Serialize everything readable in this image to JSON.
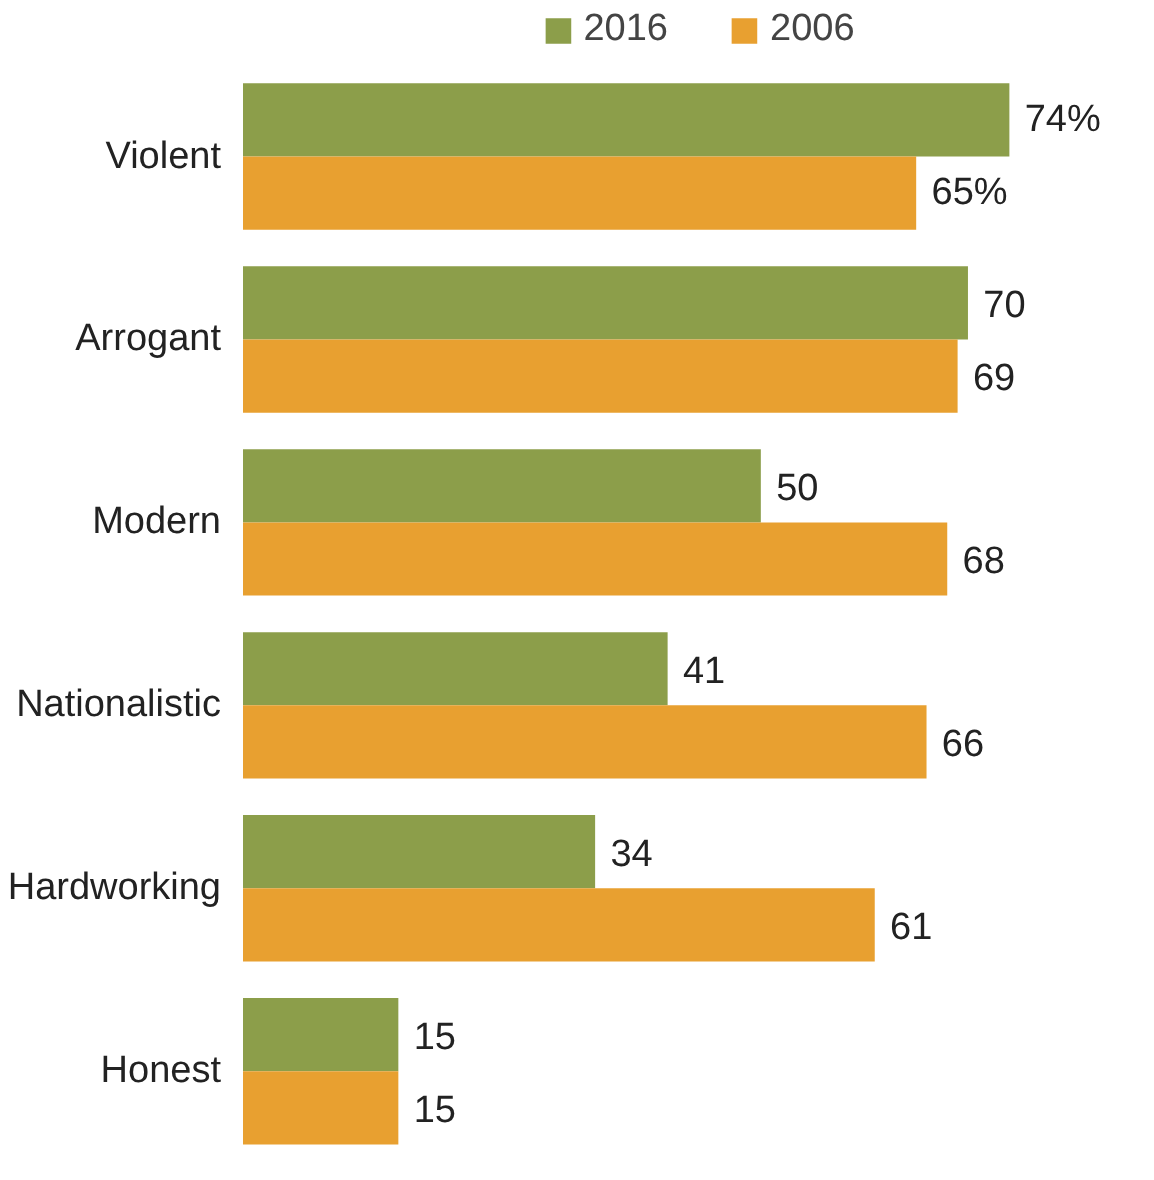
{
  "chart_data": {
    "type": "bar",
    "orientation": "horizontal",
    "categories": [
      "Violent",
      "Arrogant",
      "Modern",
      "Nationalistic",
      "Hardworking",
      "Honest"
    ],
    "series": [
      {
        "name": "2016",
        "color": "#8c9e4a",
        "values": [
          74,
          70,
          50,
          41,
          34,
          15
        ],
        "value_labels": [
          "74%",
          "70",
          "50",
          "41",
          "34",
          "15"
        ]
      },
      {
        "name": "2006",
        "color": "#e8a030",
        "values": [
          65,
          69,
          68,
          66,
          61,
          15
        ],
        "value_labels": [
          "65%",
          "69",
          "68",
          "66",
          "61",
          "15"
        ]
      }
    ],
    "legend": "top",
    "grid": false,
    "tick_labels": "y"
  }
}
